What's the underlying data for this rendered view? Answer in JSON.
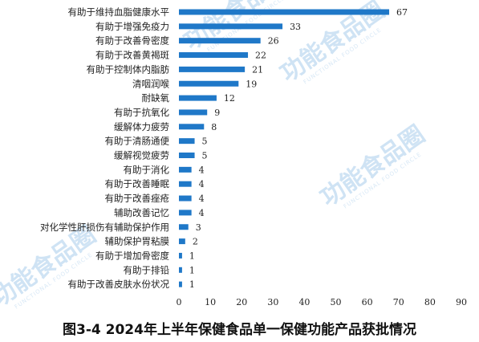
{
  "chart_data": {
    "type": "bar",
    "orientation": "horizontal",
    "categories": [
      "有助于维持血脂健康水平",
      "有助于增强免疫力",
      "有助于改善骨密度",
      "有助于改善黄褐斑",
      "有助于控制体内脂肪",
      "清咽润喉",
      "耐缺氧",
      "有助于抗氧化",
      "缓解体力疲劳",
      "有助于清肠通便",
      "缓解视觉疲劳",
      "有助于消化",
      "有助于改善睡眠",
      "有助于改善痤疮",
      "辅助改善记忆",
      "对化学性肝损伤有辅助保护作用",
      "辅助保护胃粘膜",
      "有助于增加骨密度",
      "有助于排铅",
      "有助于改善皮肤水份状况"
    ],
    "values": [
      67,
      33,
      26,
      22,
      21,
      19,
      12,
      9,
      8,
      5,
      5,
      4,
      4,
      4,
      4,
      3,
      2,
      1,
      1,
      1
    ],
    "xlim": [
      0,
      90
    ],
    "xticks": [
      0,
      10,
      20,
      30,
      40,
      50,
      60,
      70,
      80,
      90
    ],
    "bar_color": "#1f78c8",
    "grid": false,
    "data_labels": true
  },
  "caption": "图3-4  2024年上半年保健食品单一保健功能产品获批情况",
  "watermark": {
    "text": "功能食品圈",
    "subtext": "FUNCTIONAL FOOD CIRCLE",
    "color": "#cfe3f4"
  }
}
